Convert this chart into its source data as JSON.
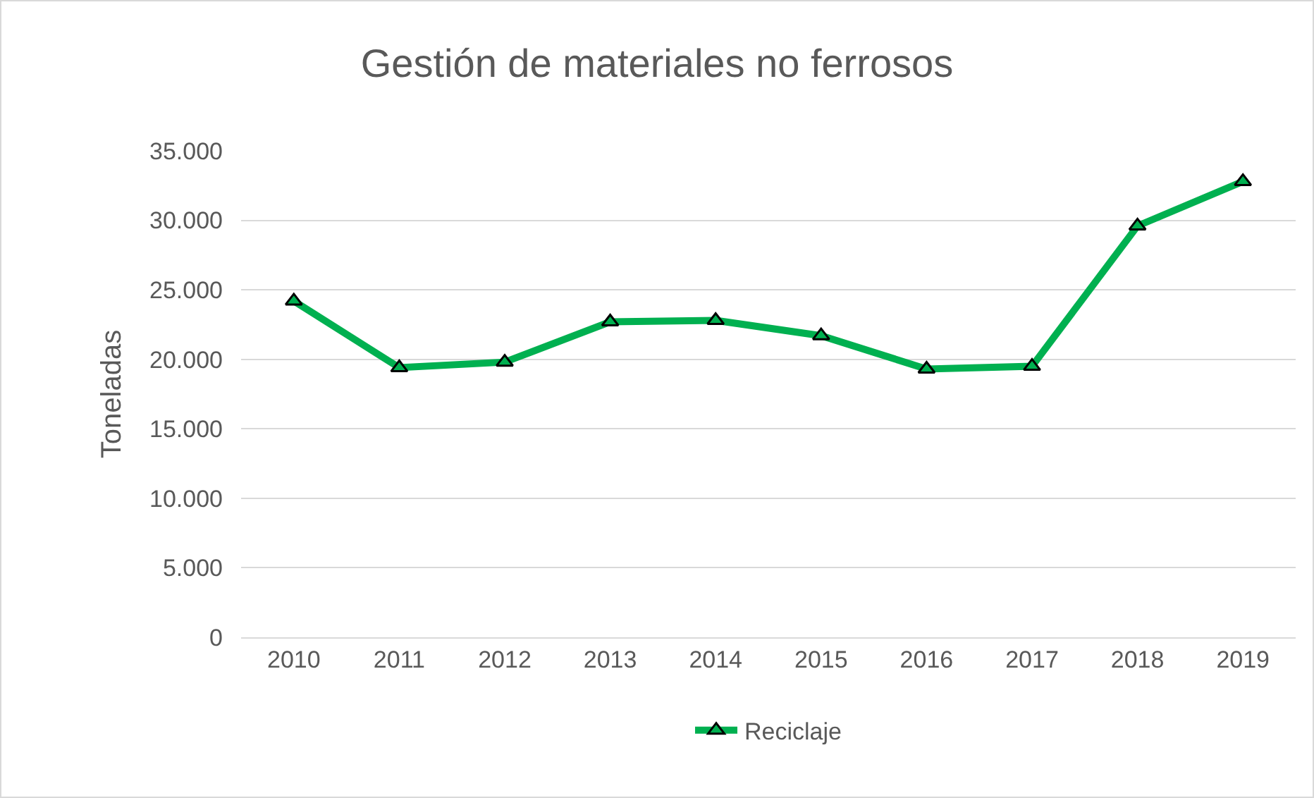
{
  "chart_data": {
    "type": "line",
    "title": "Gestión de materiales no ferrosos",
    "ylabel": "Toneladas",
    "categories": [
      "2010",
      "2011",
      "2012",
      "2013",
      "2014",
      "2015",
      "2016",
      "2017",
      "2018",
      "2019"
    ],
    "series": [
      {
        "name": "Reciclaje",
        "color": "#00b050",
        "values": [
          24200,
          19400,
          19800,
          22700,
          22800,
          21700,
          19300,
          19500,
          29600,
          32800
        ]
      }
    ],
    "ylim": [
      0,
      35000
    ],
    "yticks": [
      {
        "value": 0,
        "label": "0"
      },
      {
        "value": 5000,
        "label": "5.000"
      },
      {
        "value": 10000,
        "label": "10.000"
      },
      {
        "value": 15000,
        "label": "15.000"
      },
      {
        "value": 20000,
        "label": "20.000"
      },
      {
        "value": 25000,
        "label": "25.000"
      },
      {
        "value": 30000,
        "label": "30.000"
      },
      {
        "value": 35000,
        "label": "35.000"
      }
    ],
    "grid": "y",
    "legend": "bottom",
    "marker": "triangle",
    "line_style": "solid"
  }
}
